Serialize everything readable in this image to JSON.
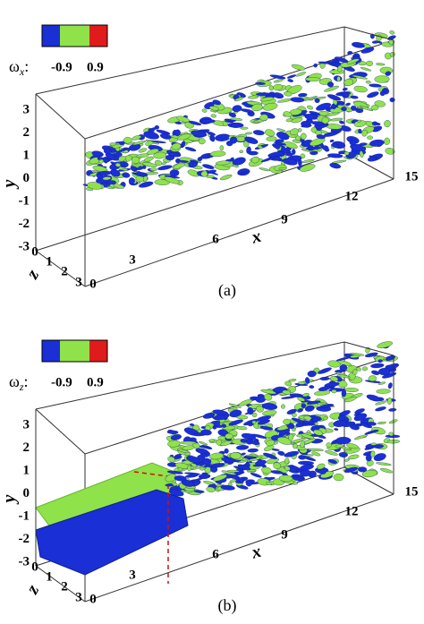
{
  "panels": [
    {
      "legend": {
        "symbol": "ω",
        "subscript": "x",
        "suffix": ":",
        "labels": [
          "-0.9",
          "0.9"
        ]
      },
      "y_label": "y",
      "y_ticks": [
        "3",
        "2",
        "1",
        "0",
        "-1",
        "-2",
        "-3"
      ],
      "z_label": "z",
      "z_ticks": [
        "0",
        "1",
        "2",
        "3"
      ],
      "x_label": "x",
      "x_ticks": [
        "0",
        "3",
        "6",
        "9",
        "12",
        "15"
      ],
      "caption": "(a)"
    },
    {
      "legend": {
        "symbol": "ω",
        "subscript": "z",
        "suffix": ":",
        "labels": [
          "-0.9",
          "0.9"
        ]
      },
      "y_label": "y",
      "y_ticks": [
        "3",
        "2",
        "1",
        "0",
        "-1",
        "-2",
        "-3"
      ],
      "z_label": "z",
      "z_ticks": [
        "0",
        "1",
        "2",
        "3"
      ],
      "x_label": "x",
      "x_ticks": [
        "0",
        "3",
        "6",
        "9",
        "12",
        "15"
      ],
      "caption": "(b)"
    }
  ]
}
